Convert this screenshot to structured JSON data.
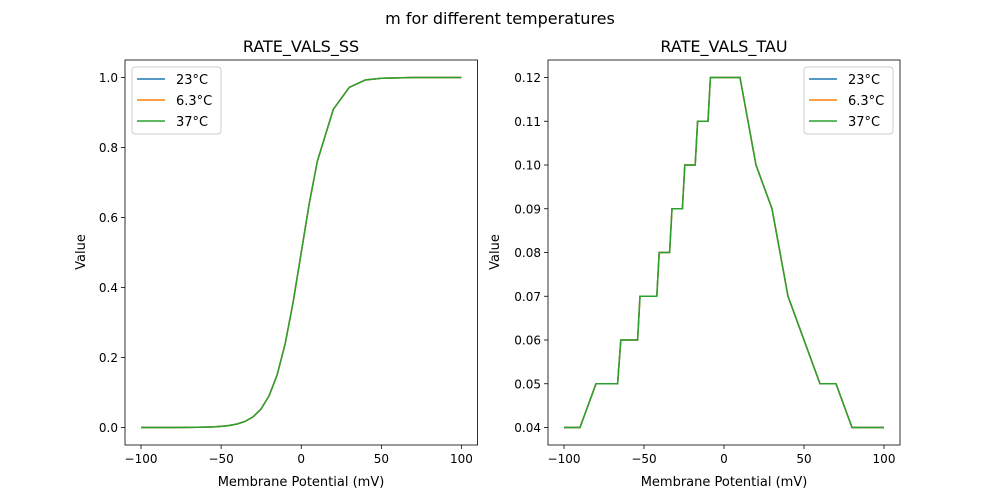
{
  "figure": {
    "suptitle": "m for different temperatures"
  },
  "colors": {
    "23°C": "#1f77b4",
    "6.3°C": "#ff7f0e",
    "37°C": "#2ca02c"
  },
  "chart_data": [
    {
      "type": "line",
      "title": "RATE_VALS_SS",
      "xlabel": "Membrane Potential (mV)",
      "ylabel": "Value",
      "xlim": [
        -110,
        110
      ],
      "ylim": [
        -0.05,
        1.05
      ],
      "xticks": [
        -100,
        -50,
        0,
        50,
        100
      ],
      "xtick_labels": [
        "−100",
        "−50",
        "0",
        "50",
        "100"
      ],
      "yticks": [
        0.0,
        0.2,
        0.4,
        0.6,
        0.8,
        1.0
      ],
      "ytick_labels": [
        "0.0",
        "0.2",
        "0.4",
        "0.6",
        "0.8",
        "1.0"
      ],
      "grid": false,
      "legend": "top-left",
      "x": [
        -100,
        -90,
        -80,
        -70,
        -60,
        -55,
        -50,
        -45,
        -40,
        -35,
        -30,
        -25,
        -20,
        -15,
        -10,
        -5,
        0,
        5,
        10,
        20,
        30,
        40,
        50,
        60,
        70,
        80,
        90,
        100
      ],
      "series": [
        {
          "name": "23°C",
          "values": [
            0.0,
            0.0,
            0.0001,
            0.0003,
            0.001,
            0.0018,
            0.0032,
            0.0056,
            0.01,
            0.0176,
            0.0308,
            0.0535,
            0.0912,
            0.151,
            0.24,
            0.36,
            0.5,
            0.64,
            0.76,
            0.909,
            0.972,
            0.993,
            0.998,
            0.999,
            1.0,
            1.0,
            1.0,
            1.0
          ]
        },
        {
          "name": "6.3°C",
          "values": [
            0.0,
            0.0,
            0.0001,
            0.0003,
            0.001,
            0.0018,
            0.0032,
            0.0056,
            0.01,
            0.0176,
            0.0308,
            0.0535,
            0.0912,
            0.151,
            0.24,
            0.36,
            0.5,
            0.64,
            0.76,
            0.909,
            0.972,
            0.993,
            0.998,
            0.999,
            1.0,
            1.0,
            1.0,
            1.0
          ]
        },
        {
          "name": "37°C",
          "values": [
            0.0,
            0.0,
            0.0001,
            0.0003,
            0.001,
            0.0018,
            0.0032,
            0.0056,
            0.01,
            0.0176,
            0.0308,
            0.0535,
            0.0912,
            0.151,
            0.24,
            0.36,
            0.5,
            0.64,
            0.76,
            0.909,
            0.972,
            0.993,
            0.998,
            0.999,
            1.0,
            1.0,
            1.0,
            1.0
          ]
        }
      ]
    },
    {
      "type": "line",
      "title": "RATE_VALS_TAU",
      "xlabel": "Membrane Potential (mV)",
      "ylabel": "Value",
      "xlim": [
        -110,
        110
      ],
      "ylim": [
        0.036,
        0.124
      ],
      "xticks": [
        -100,
        -50,
        0,
        50,
        100
      ],
      "xtick_labels": [
        "−100",
        "−50",
        "0",
        "50",
        "100"
      ],
      "yticks": [
        0.04,
        0.05,
        0.06,
        0.07,
        0.08,
        0.09,
        0.1,
        0.11,
        0.12
      ],
      "ytick_labels": [
        "0.04",
        "0.05",
        "0.06",
        "0.07",
        "0.08",
        "0.09",
        "0.10",
        "0.11",
        "0.12"
      ],
      "grid": false,
      "legend": "top-right",
      "x": [
        -100,
        -90,
        -80,
        -66.5,
        -64.5,
        -54,
        -52.5,
        -42,
        -40.5,
        -34,
        -32.5,
        -26,
        -24.5,
        -18,
        -16.5,
        -10,
        -8.5,
        10,
        20,
        30,
        40,
        60,
        70,
        80,
        100
      ],
      "series": [
        {
          "name": "23°C",
          "values": [
            0.04,
            0.04,
            0.05,
            0.05,
            0.06,
            0.06,
            0.07,
            0.07,
            0.08,
            0.08,
            0.09,
            0.09,
            0.1,
            0.1,
            0.11,
            0.11,
            0.12,
            0.12,
            0.1,
            0.09,
            0.07,
            0.05,
            0.05,
            0.04,
            0.04
          ]
        },
        {
          "name": "6.3°C",
          "values": [
            0.04,
            0.04,
            0.05,
            0.05,
            0.06,
            0.06,
            0.07,
            0.07,
            0.08,
            0.08,
            0.09,
            0.09,
            0.1,
            0.1,
            0.11,
            0.11,
            0.12,
            0.12,
            0.1,
            0.09,
            0.07,
            0.05,
            0.05,
            0.04,
            0.04
          ]
        },
        {
          "name": "37°C",
          "values": [
            0.04,
            0.04,
            0.05,
            0.05,
            0.06,
            0.06,
            0.07,
            0.07,
            0.08,
            0.08,
            0.09,
            0.09,
            0.1,
            0.1,
            0.11,
            0.11,
            0.12,
            0.12,
            0.1,
            0.09,
            0.07,
            0.05,
            0.05,
            0.04,
            0.04
          ]
        }
      ]
    }
  ]
}
